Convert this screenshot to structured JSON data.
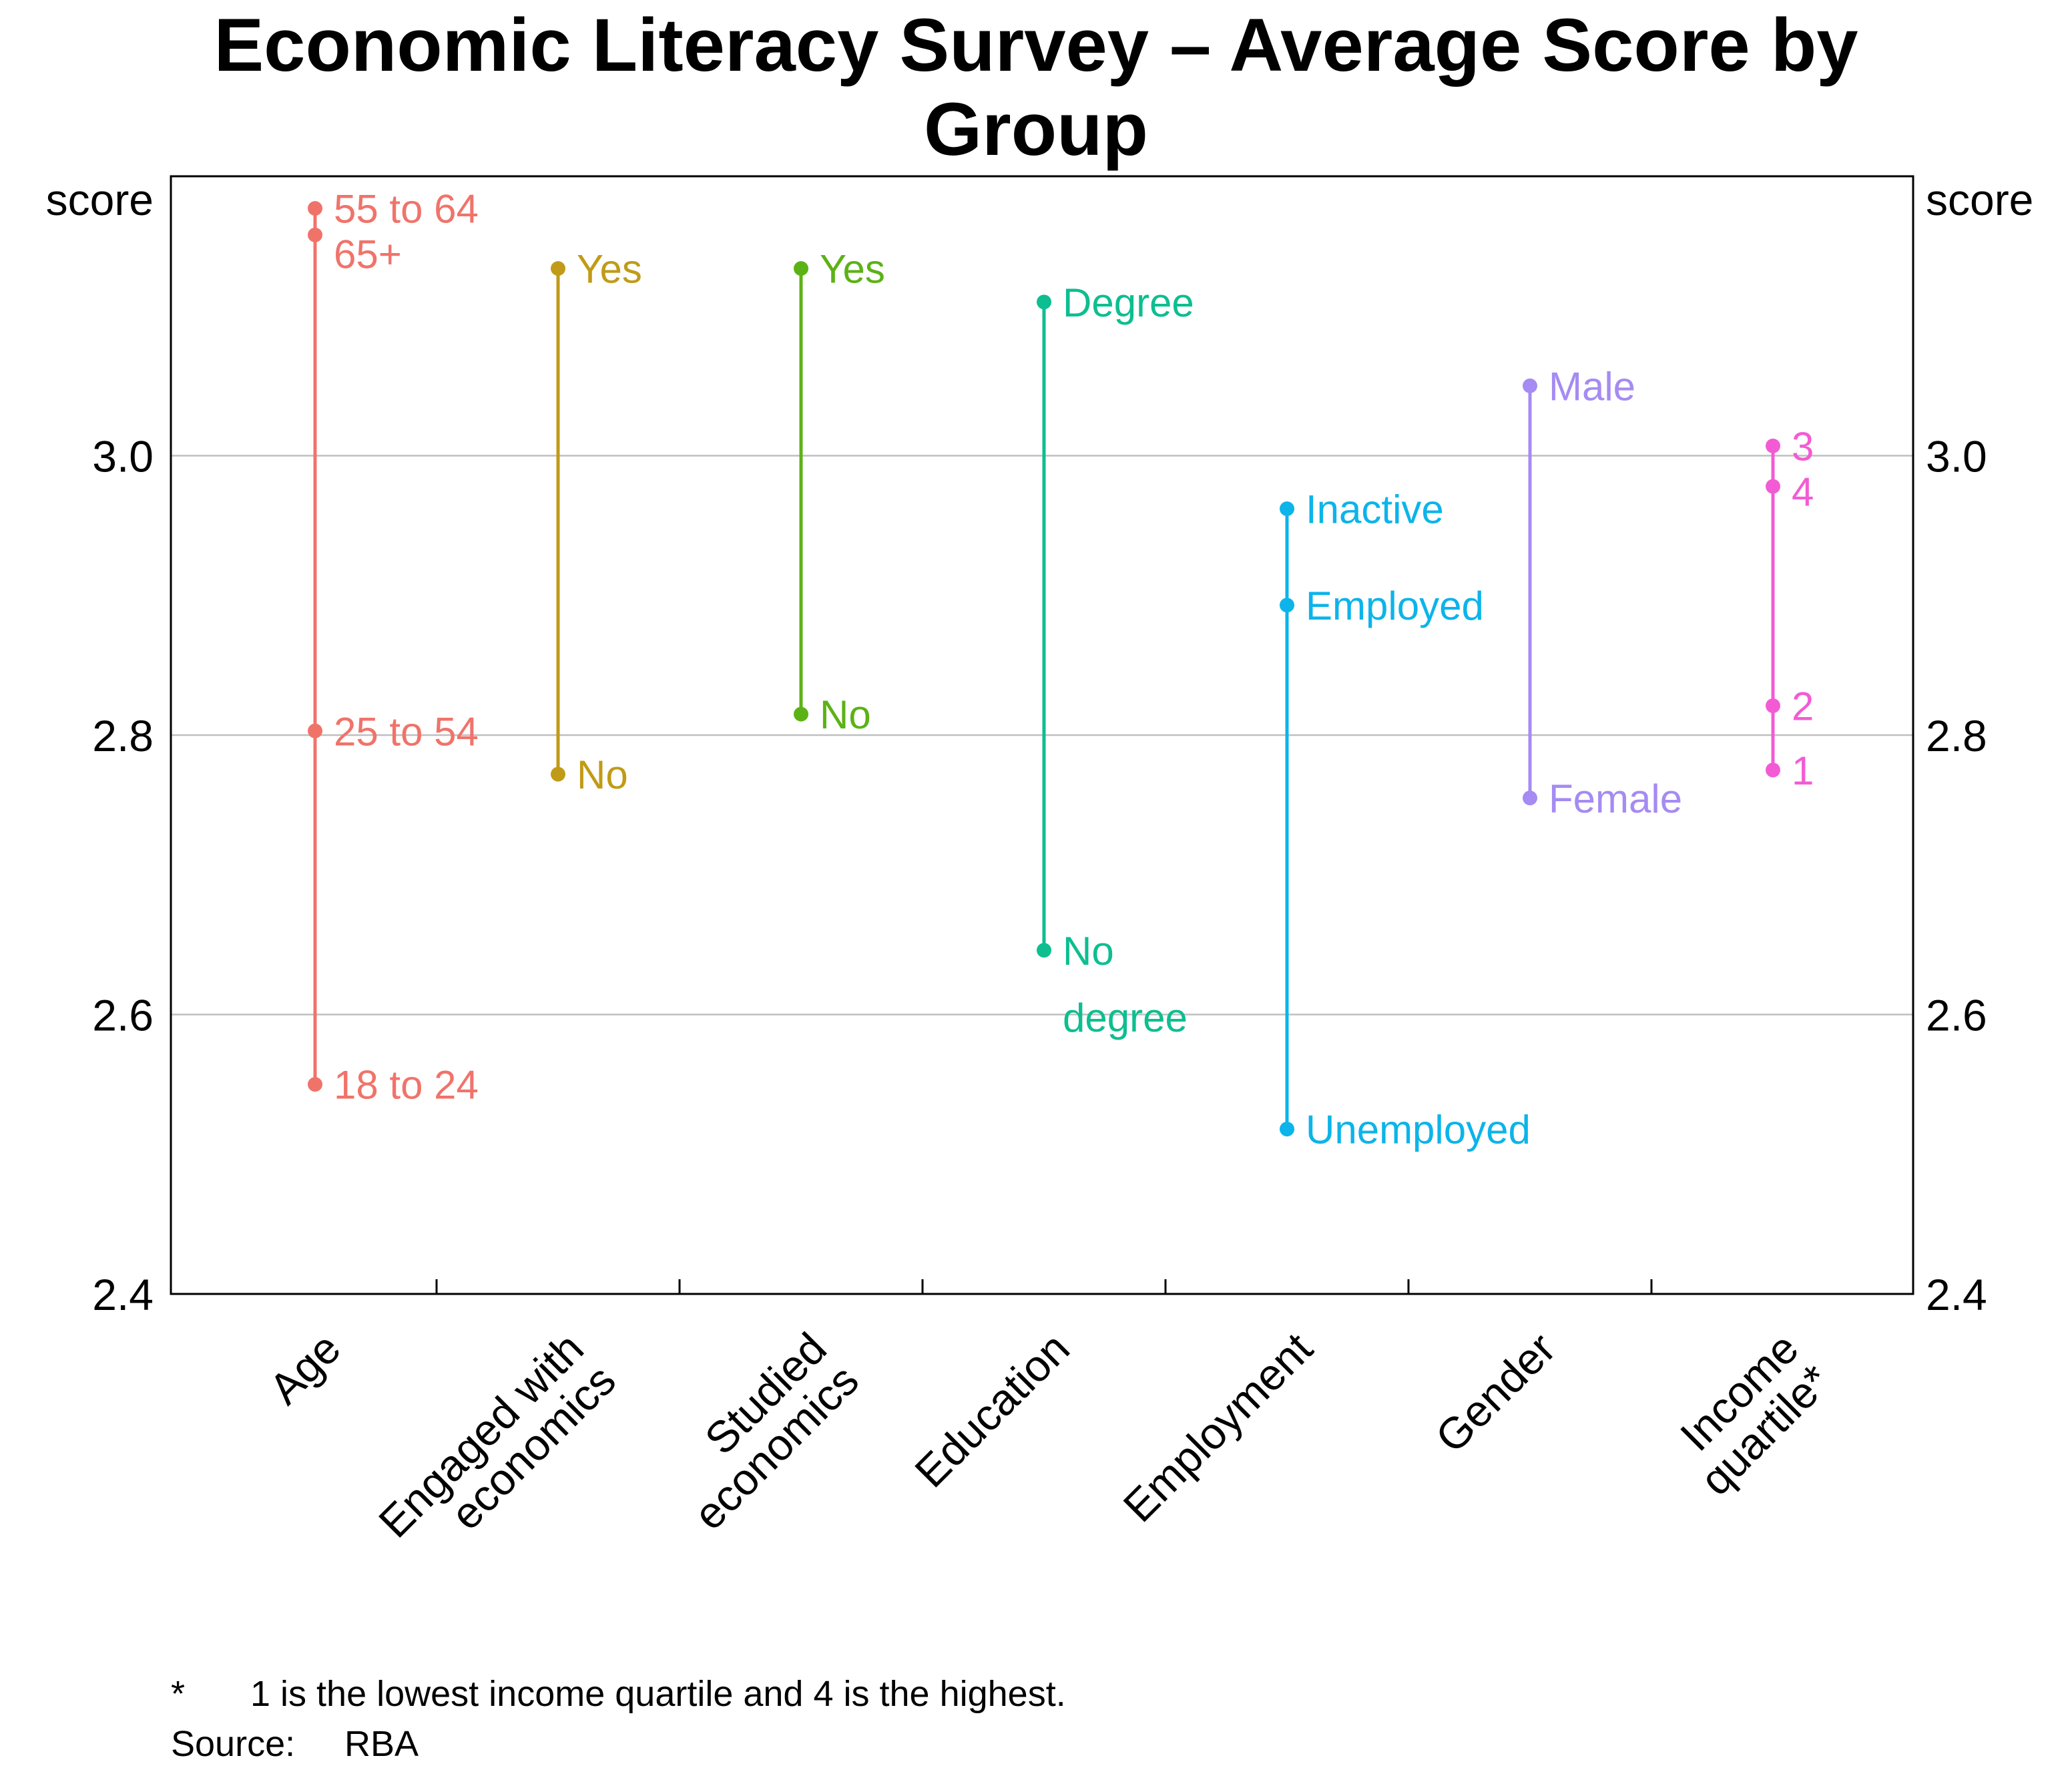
{
  "chart_data": {
    "type": "dot-range",
    "title": "Economic Literacy Survey – Average Score by Group",
    "title_lines": [
      "Economic Literacy Survey – Average Score by",
      "Group"
    ],
    "ylabel_left": "score",
    "ylabel_right": "score",
    "ylim": [
      2.4,
      3.2
    ],
    "yticks": [
      2.4,
      2.6,
      2.8,
      3.0
    ],
    "ytick_labels": [
      "2.4",
      "2.6",
      "2.8",
      "3.0"
    ],
    "grid": true,
    "categories": [
      {
        "name": "Age",
        "name_lines": [
          "Age"
        ],
        "color": "#F0736A",
        "points": [
          {
            "label": "55 to 64",
            "label_lines": [
              "55 to 64"
            ],
            "value": 3.177
          },
          {
            "label": "65+",
            "label_lines": [
              "65+"
            ],
            "value": 3.158
          },
          {
            "label": "25 to 54",
            "label_lines": [
              "25 to 54"
            ],
            "value": 2.803
          },
          {
            "label": "18 to 24",
            "label_lines": [
              "18 to 24"
            ],
            "value": 2.55
          }
        ]
      },
      {
        "name": "Engaged with economics",
        "name_lines": [
          "Engaged with",
          "economics"
        ],
        "color": "#C19B17",
        "points": [
          {
            "label": "Yes",
            "label_lines": [
              "Yes"
            ],
            "value": 3.134
          },
          {
            "label": "No",
            "label_lines": [
              "No"
            ],
            "value": 2.772
          }
        ]
      },
      {
        "name": "Studied economics",
        "name_lines": [
          "Studied",
          "economics"
        ],
        "color": "#5BB215",
        "points": [
          {
            "label": "Yes",
            "label_lines": [
              "Yes"
            ],
            "value": 3.134
          },
          {
            "label": "No",
            "label_lines": [
              "No"
            ],
            "value": 2.815
          }
        ]
      },
      {
        "name": "Education",
        "name_lines": [
          "Education"
        ],
        "color": "#0DBE90",
        "points": [
          {
            "label": "Degree",
            "label_lines": [
              "Degree"
            ],
            "value": 3.11
          },
          {
            "label": "No degree",
            "label_lines": [
              "No",
              "degree"
            ],
            "value": 2.646
          }
        ]
      },
      {
        "name": "Employment",
        "name_lines": [
          "Employment"
        ],
        "color": "#0CB4E9",
        "points": [
          {
            "label": "Inactive",
            "label_lines": [
              "Inactive"
            ],
            "value": 2.962
          },
          {
            "label": "Employed",
            "label_lines": [
              "Employed"
            ],
            "value": 2.893
          },
          {
            "label": "Unemployed",
            "label_lines": [
              "Unemployed"
            ],
            "value": 2.518
          }
        ]
      },
      {
        "name": "Gender",
        "name_lines": [
          "Gender"
        ],
        "color": "#A58BF2",
        "points": [
          {
            "label": "Male",
            "label_lines": [
              "Male"
            ],
            "value": 3.05
          },
          {
            "label": "Female",
            "label_lines": [
              "Female"
            ],
            "value": 2.755
          }
        ]
      },
      {
        "name": "Income quartile*",
        "name_lines": [
          "Income",
          "quartile*"
        ],
        "color": "#F35BD4",
        "points": [
          {
            "label": "3",
            "label_lines": [
              "3"
            ],
            "value": 3.007
          },
          {
            "label": "4",
            "label_lines": [
              "4"
            ],
            "value": 2.978
          },
          {
            "label": "2",
            "label_lines": [
              "2"
            ],
            "value": 2.821
          },
          {
            "label": "1",
            "label_lines": [
              "1"
            ],
            "value": 2.775
          }
        ]
      }
    ]
  },
  "footnotes": {
    "note_marker": "*",
    "note_text": "1 is the lowest income quartile and 4 is the highest.",
    "source_label": "Source:",
    "source_text": "RBA"
  }
}
